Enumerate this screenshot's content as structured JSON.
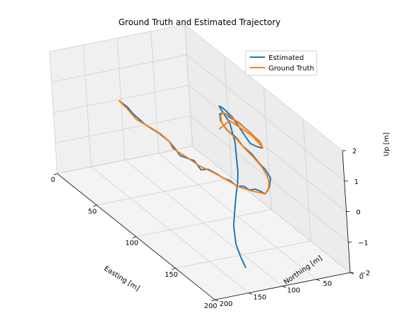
{
  "chart_data": {
    "type": "line3d",
    "title": "Ground Truth and Estimated Trajectory",
    "xlabel": "Easting [m]",
    "ylabel": "Northing [m]",
    "zlabel": "Up [m]",
    "xlim": [
      0,
      200
    ],
    "ylim": [
      0,
      200
    ],
    "zlim": [
      -2,
      2
    ],
    "x_ticks": [
      "0",
      "50",
      "100",
      "150",
      "200"
    ],
    "y_ticks": [
      "0",
      "50",
      "100",
      "150",
      "200"
    ],
    "z_ticks": [
      "−2",
      "−1",
      "0",
      "1",
      "2"
    ],
    "grid": true,
    "legend_position": "upper-right",
    "series": [
      {
        "name": "Estimated",
        "color": "#1f77b4",
        "points": [
          [
            2,
            105,
            0.0
          ],
          [
            12,
            105,
            0.02
          ],
          [
            25,
            110,
            0.05
          ],
          [
            40,
            110,
            0.02
          ],
          [
            55,
            108,
            0.05
          ],
          [
            70,
            110,
            0.1
          ],
          [
            80,
            112,
            0.05
          ],
          [
            88,
            115,
            0.03
          ],
          [
            100,
            108,
            0.08
          ],
          [
            110,
            110,
            0.0
          ],
          [
            115,
            105,
            0.1
          ],
          [
            120,
            100,
            0.05
          ],
          [
            130,
            100,
            0.1
          ],
          [
            135,
            95,
            0.08
          ],
          [
            140,
            92,
            0.0
          ],
          [
            146,
            88,
            0.1
          ],
          [
            150,
            85,
            0.05
          ],
          [
            153,
            80,
            0.12
          ],
          [
            155,
            75,
            0.08
          ],
          [
            157,
            70,
            0.0
          ],
          [
            155,
            62,
            0.1
          ],
          [
            150,
            55,
            0.05
          ],
          [
            145,
            48,
            0.1
          ],
          [
            140,
            42,
            0.05
          ],
          [
            130,
            38,
            0.1
          ],
          [
            120,
            35,
            0.08
          ],
          [
            108,
            32,
            0.12
          ],
          [
            95,
            30,
            0.1
          ],
          [
            83,
            27,
            0.15
          ],
          [
            70,
            25,
            0.1
          ],
          [
            58,
            20,
            0.12
          ],
          [
            50,
            12,
            0.15
          ],
          [
            48,
            5,
            0.12
          ],
          [
            50,
            2,
            0.1
          ],
          [
            55,
            4,
            0.12
          ],
          [
            65,
            2,
            0.15
          ],
          [
            80,
            2,
            0.12
          ],
          [
            95,
            4,
            0.1
          ],
          [
            100,
            8,
            0.05
          ],
          [
            103,
            18,
            0.2
          ],
          [
            103,
            28,
            0.35
          ],
          [
            105,
            40,
            0.8
          ],
          [
            106,
            55,
            1.4
          ],
          [
            108,
            70,
            1.8
          ],
          [
            112,
            80,
            2.0
          ],
          [
            125,
            80,
            1.7
          ],
          [
            135,
            85,
            1.3
          ],
          [
            145,
            95,
            0.9
          ],
          [
            150,
            100,
            0.7
          ],
          [
            156,
            108,
            0.5
          ],
          [
            160,
            116,
            0.2
          ],
          [
            165,
            125,
            -0.2
          ],
          [
            170,
            133,
            -0.5
          ],
          [
            178,
            140,
            -0.9
          ],
          [
            188,
            145,
            -1.1
          ],
          [
            198,
            150,
            -1.2
          ]
        ]
      },
      {
        "name": "Ground Truth",
        "color": "#ff7f0e",
        "points": [
          [
            2,
            105,
            0.0
          ],
          [
            15,
            108,
            0.02
          ],
          [
            30,
            112,
            0.0
          ],
          [
            45,
            108,
            0.02
          ],
          [
            58,
            108,
            0.08
          ],
          [
            70,
            110,
            0.1
          ],
          [
            78,
            114,
            0.05
          ],
          [
            90,
            110,
            0.03
          ],
          [
            105,
            106,
            0.0
          ],
          [
            118,
            100,
            0.02
          ],
          [
            130,
            96,
            0.03
          ],
          [
            142,
            90,
            0.0
          ],
          [
            152,
            83,
            0.05
          ],
          [
            156,
            76,
            0.05
          ],
          [
            157,
            70,
            0.0
          ],
          [
            154,
            62,
            0.02
          ],
          [
            149,
            55,
            0.05
          ],
          [
            143,
            48,
            0.03
          ],
          [
            135,
            42,
            0.05
          ],
          [
            124,
            37,
            0.08
          ],
          [
            112,
            34,
            0.1
          ],
          [
            98,
            31,
            0.1
          ],
          [
            85,
            28,
            0.12
          ],
          [
            72,
            25,
            0.1
          ],
          [
            60,
            21,
            0.12
          ],
          [
            52,
            13,
            0.15
          ],
          [
            48,
            5,
            0.12
          ],
          [
            52,
            2,
            0.12
          ],
          [
            62,
            2,
            0.13
          ],
          [
            78,
            2,
            0.12
          ],
          [
            93,
            3,
            0.1
          ],
          [
            100,
            7,
            0.05
          ],
          [
            102,
            15,
            0.3
          ],
          [
            103,
            25,
            0.6
          ],
          [
            103,
            40,
            0.9
          ],
          [
            102,
            55,
            1.2
          ],
          [
            102,
            70,
            1.0
          ]
        ]
      }
    ]
  }
}
